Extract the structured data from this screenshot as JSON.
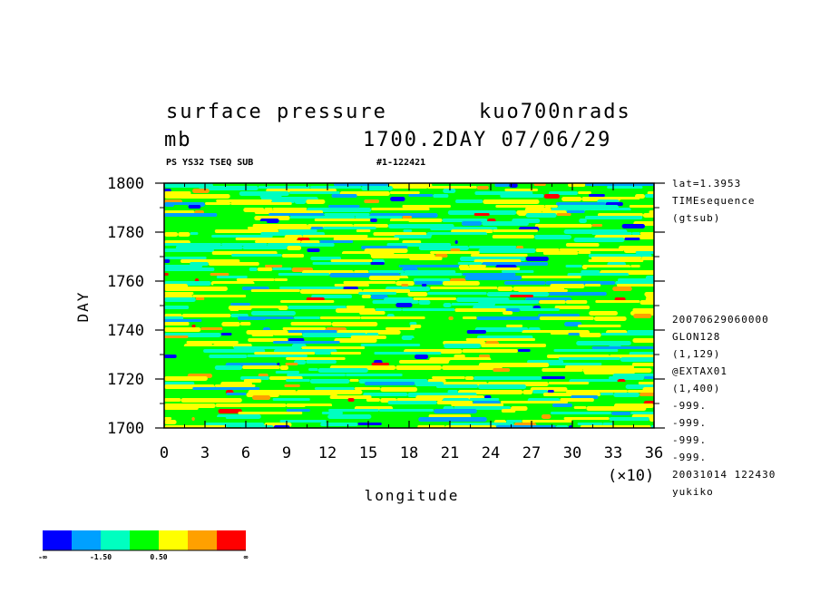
{
  "header": {
    "title": "surface pressure",
    "dataset": "kuo700nrads",
    "units": "mb",
    "timestamp": "1700.2DAY 07/06/29",
    "subtitle_left": "PS YS32 TSEQ SUB",
    "subtitle_right": "#1-122421"
  },
  "info_panel": {
    "top": [
      "lat=1.3953",
      "TIMEsequence",
      "(gtsub)"
    ],
    "bottom": [
      "20070629060000",
      "GLON128",
      "(1,129)",
      "@EXTAX01",
      "(1,400)",
      "-999.",
      "-999.",
      "-999.",
      "-999.",
      "20031014 122430",
      "yukiko"
    ]
  },
  "colorbar": {
    "labels": [
      "-∞",
      "-1.50",
      "0.50",
      "∞"
    ],
    "colors": [
      "#0000ff",
      "#00a0ff",
      "#00ffc0",
      "#00ff00",
      "#ffff00",
      "#ffa000",
      "#ff0000"
    ]
  },
  "chart_data": {
    "type": "heatmap",
    "xlabel": "longitude",
    "x_multiplier": "(×10)",
    "ylabel": "DAY",
    "xlim": [
      0,
      36
    ],
    "ylim": [
      1700,
      1800
    ],
    "x_ticks": [
      0,
      3,
      6,
      9,
      12,
      15,
      18,
      21,
      24,
      27,
      30,
      33,
      36
    ],
    "y_ticks": [
      1700,
      1720,
      1740,
      1760,
      1780,
      1800
    ],
    "grid": false,
    "legend": "bottom-left colorbar",
    "levels": [
      "-inf",
      "-1.50",
      "0.50",
      "inf"
    ],
    "dominant_colors": [
      "#00ff00",
      "#ffff00",
      "#00ffc0"
    ]
  }
}
